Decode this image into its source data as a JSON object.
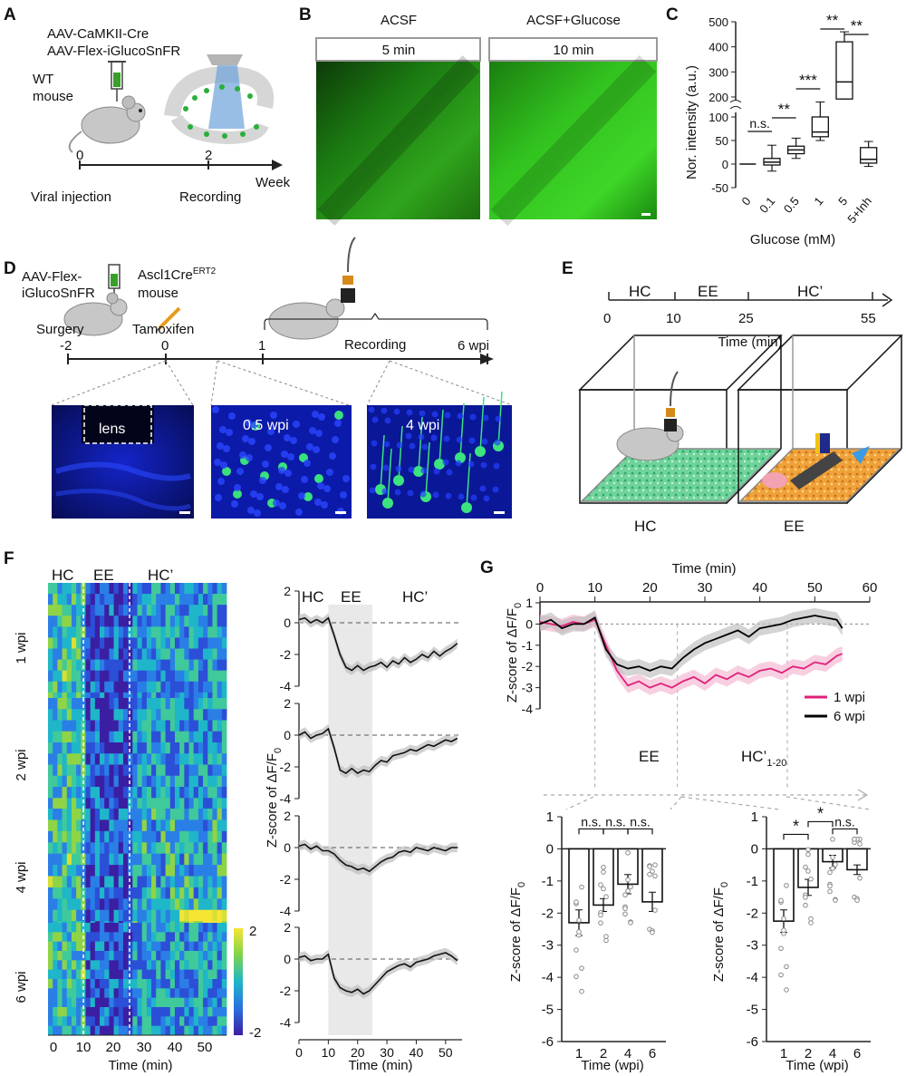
{
  "panelA": {
    "letter": "A",
    "virus1": "AAV-CaMKII-Cre",
    "virus2": "AAV-Flex-iGlucoSnFR",
    "mouse1": "WT",
    "mouse2": "mouse",
    "t0": "0",
    "t2": "2",
    "unit": "Week",
    "ev0": "Viral injection",
    "ev2": "Recording"
  },
  "panelB": {
    "letter": "B",
    "cond1": "ACSF",
    "cond2": "ACSF+Glucose",
    "time1": "5 min",
    "time2": "10 min"
  },
  "panelC": {
    "letter": "C",
    "ylabel": "Nor. intensity (a.u.)",
    "xlabel": "Glucose (mM)",
    "sig": [
      "n.s.",
      "**",
      "***",
      "**",
      "**"
    ]
  },
  "panelD": {
    "letter": "D",
    "virus1": "AAV-Flex-",
    "virus2": "iGlucoSnFR",
    "mouse1": "Ascl1Cre",
    "mouse1sup": "ERT2",
    "mouse2": "mouse",
    "surgery": "Surgery",
    "tamoxifen": "Tamoxifen",
    "recording": "Recording",
    "t1": "-2",
    "t2": "0",
    "t3": "1",
    "t4": "6 wpi",
    "img1": "lens",
    "img2": "0.5 wpi",
    "img3": "4 wpi"
  },
  "panelE": {
    "letter": "E",
    "seg1": "HC",
    "seg2": "EE",
    "seg3": "HC’",
    "t0": "0",
    "t1": "10",
    "t2": "25",
    "t3": "55",
    "xlabel": "Time (min)",
    "box1": "HC",
    "box2": "EE"
  },
  "panelF": {
    "letter": "F",
    "hm_hc": "HC",
    "hm_ee": "EE",
    "hm_hcp": "HC’",
    "rows": [
      "1 wpi",
      "2 wpi",
      "4 wpi",
      "6 wpi"
    ],
    "hm_xlabel": "Time (min)",
    "hm_xticks": [
      "0",
      "10",
      "20",
      "30",
      "40",
      "50"
    ],
    "cbar_max": "2",
    "cbar_min": "-2",
    "tr_hc": "HC",
    "tr_ee": "EE",
    "tr_hcp": "HC’",
    "tr_ylabel": "Z-score of ΔF/F",
    "tr_ylabel_sub": "0",
    "tr_xlabel": "Time (min)",
    "tr_xticks": [
      "0",
      "10",
      "20",
      "30",
      "40",
      "50"
    ]
  },
  "panelG": {
    "letter": "G",
    "top_xlabel": "Time (min)",
    "top_ylabel": "Z-score of ΔF/F",
    "ylabel_sub": "0",
    "legend1": "1 wpi",
    "legend2": "6 wpi",
    "ee": "EE",
    "hcp": "HC’",
    "hcp_sub": "1-20",
    "bar_xlabel": "Time (wpi)",
    "bar_ylabel": "Z-score of ΔF/F",
    "bar1_sig": [
      "n.s.",
      "n.s.",
      "n.s."
    ],
    "bar2_sig": [
      "*",
      "*",
      "n.s."
    ]
  },
  "colors": {
    "pink": "#e0207a",
    "black": "#000000",
    "green": "#22c35e",
    "blue": "#1c2dd6",
    "orange": "#f2a33a"
  },
  "chart_data": [
    {
      "id": "C",
      "type": "box",
      "categories": [
        "0",
        "0.1",
        "0.5",
        "1",
        "5",
        "5+Inh"
      ],
      "xlabel": "Glucose (mM)",
      "ylabel": "Nor. intensity (a.u.)",
      "ylim_lower": [
        -50,
        100
      ],
      "ylim_upper": [
        200,
        500
      ],
      "axis_break": true,
      "boxes": [
        {
          "min": 0,
          "q1": 0,
          "median": 0,
          "q3": 0,
          "max": 0
        },
        {
          "min": -15,
          "q1": -2,
          "median": 4,
          "q3": 12,
          "max": 40
        },
        {
          "min": 12,
          "q1": 22,
          "median": 30,
          "q3": 38,
          "max": 55
        },
        {
          "min": 50,
          "q1": 58,
          "median": 68,
          "q3": 100,
          "max": 150
        },
        {
          "min": 180,
          "q1": 180,
          "median": 260,
          "q3": 420,
          "max": 460
        },
        {
          "min": -5,
          "q1": 2,
          "median": 10,
          "q3": 35,
          "max": 48
        }
      ]
    },
    {
      "id": "F-traces",
      "type": "line",
      "xlabel": "Time (min)",
      "ylabel": "Z-score of ΔF/F0",
      "xlim": [
        0,
        55
      ],
      "ylim": [
        -4,
        2
      ],
      "shaded_epoch": [
        10,
        25
      ],
      "x": [
        0,
        2,
        4,
        6,
        8,
        10,
        12,
        14,
        16,
        18,
        20,
        22,
        24,
        26,
        28,
        30,
        32,
        34,
        36,
        38,
        40,
        42,
        44,
        46,
        48,
        50,
        52,
        54
      ],
      "series": [
        {
          "name": "1 wpi",
          "values": [
            0.2,
            0.3,
            0.0,
            0.2,
            0.0,
            0.3,
            -0.8,
            -2.0,
            -2.8,
            -3.0,
            -2.7,
            -3.0,
            -2.8,
            -2.7,
            -2.5,
            -2.8,
            -2.4,
            -2.6,
            -2.2,
            -2.5,
            -2.3,
            -2.0,
            -2.2,
            -1.8,
            -2.1,
            -1.8,
            -1.6,
            -1.3
          ]
        },
        {
          "name": "2 wpi",
          "values": [
            0.0,
            0.2,
            -0.2,
            0.0,
            0.1,
            0.4,
            -0.8,
            -2.2,
            -2.4,
            -2.1,
            -2.4,
            -2.2,
            -2.3,
            -1.9,
            -1.6,
            -1.7,
            -1.3,
            -1.2,
            -1.1,
            -0.9,
            -1.0,
            -0.8,
            -0.6,
            -0.7,
            -0.5,
            -0.3,
            -0.4,
            -0.2
          ]
        },
        {
          "name": "4 wpi",
          "values": [
            0.1,
            0.2,
            -0.1,
            0.1,
            -0.2,
            -0.2,
            -0.4,
            -0.8,
            -1.1,
            -1.2,
            -1.4,
            -1.3,
            -1.5,
            -1.2,
            -0.9,
            -0.7,
            -0.6,
            -0.3,
            -0.2,
            -0.3,
            0.0,
            -0.1,
            -0.2,
            0.0,
            -0.1,
            -0.2,
            0.0,
            0.0
          ]
        },
        {
          "name": "6 wpi",
          "values": [
            0.1,
            0.2,
            -0.1,
            0.0,
            0.0,
            0.3,
            -1.2,
            -1.8,
            -2.0,
            -2.1,
            -1.9,
            -2.2,
            -2.0,
            -1.6,
            -1.2,
            -0.8,
            -0.6,
            -0.4,
            -0.3,
            -0.5,
            -0.2,
            -0.1,
            0.0,
            0.2,
            0.3,
            0.4,
            0.2,
            -0.1
          ]
        }
      ]
    },
    {
      "id": "G-top",
      "type": "line",
      "xlabel": "Time (min)",
      "ylabel": "Z-score of ΔF/F0",
      "xlim": [
        0,
        60
      ],
      "ylim": [
        -4,
        1
      ],
      "x": [
        0,
        2,
        4,
        6,
        8,
        10,
        12,
        14,
        16,
        18,
        20,
        22,
        24,
        26,
        28,
        30,
        32,
        34,
        36,
        38,
        40,
        42,
        44,
        46,
        48,
        50,
        52,
        54,
        55
      ],
      "series": [
        {
          "name": "1 wpi",
          "color": "#e0207a",
          "values": [
            0.1,
            0.0,
            -0.1,
            0.1,
            0.0,
            0.2,
            -1.0,
            -2.2,
            -2.9,
            -2.7,
            -3.0,
            -2.8,
            -3.0,
            -2.7,
            -2.5,
            -2.8,
            -2.4,
            -2.6,
            -2.3,
            -2.5,
            -2.2,
            -2.1,
            -2.3,
            -2.0,
            -2.1,
            -1.8,
            -1.9,
            -1.5,
            -1.4
          ]
        },
        {
          "name": "6 wpi",
          "color": "#000000",
          "values": [
            0.0,
            0.2,
            -0.2,
            0.0,
            0.0,
            0.3,
            -1.2,
            -1.9,
            -2.1,
            -2.0,
            -2.2,
            -2.0,
            -2.1,
            -1.6,
            -1.2,
            -0.9,
            -0.7,
            -0.5,
            -0.3,
            -0.6,
            -0.2,
            -0.1,
            0.0,
            0.2,
            0.3,
            0.4,
            0.3,
            0.2,
            -0.2
          ]
        }
      ]
    },
    {
      "id": "G-bar-EE",
      "type": "bar",
      "categories": [
        "1",
        "2",
        "4",
        "6"
      ],
      "values": [
        -2.3,
        -1.75,
        -1.1,
        -1.65
      ],
      "errors": [
        0.4,
        0.2,
        0.3,
        0.3
      ],
      "xlabel": "Time (wpi)",
      "ylabel": "Z-score of ΔF/F0",
      "ylim": [
        -6,
        1
      ]
    },
    {
      "id": "G-bar-HC",
      "type": "bar",
      "categories": [
        "1",
        "2",
        "4",
        "6"
      ],
      "values": [
        -2.25,
        -1.2,
        -0.4,
        -0.65
      ],
      "errors": [
        0.35,
        0.25,
        0.2,
        0.15
      ],
      "xlabel": "Time (wpi)",
      "ylabel": "Z-score of ΔF/F0",
      "ylim": [
        -6,
        1
      ]
    }
  ]
}
